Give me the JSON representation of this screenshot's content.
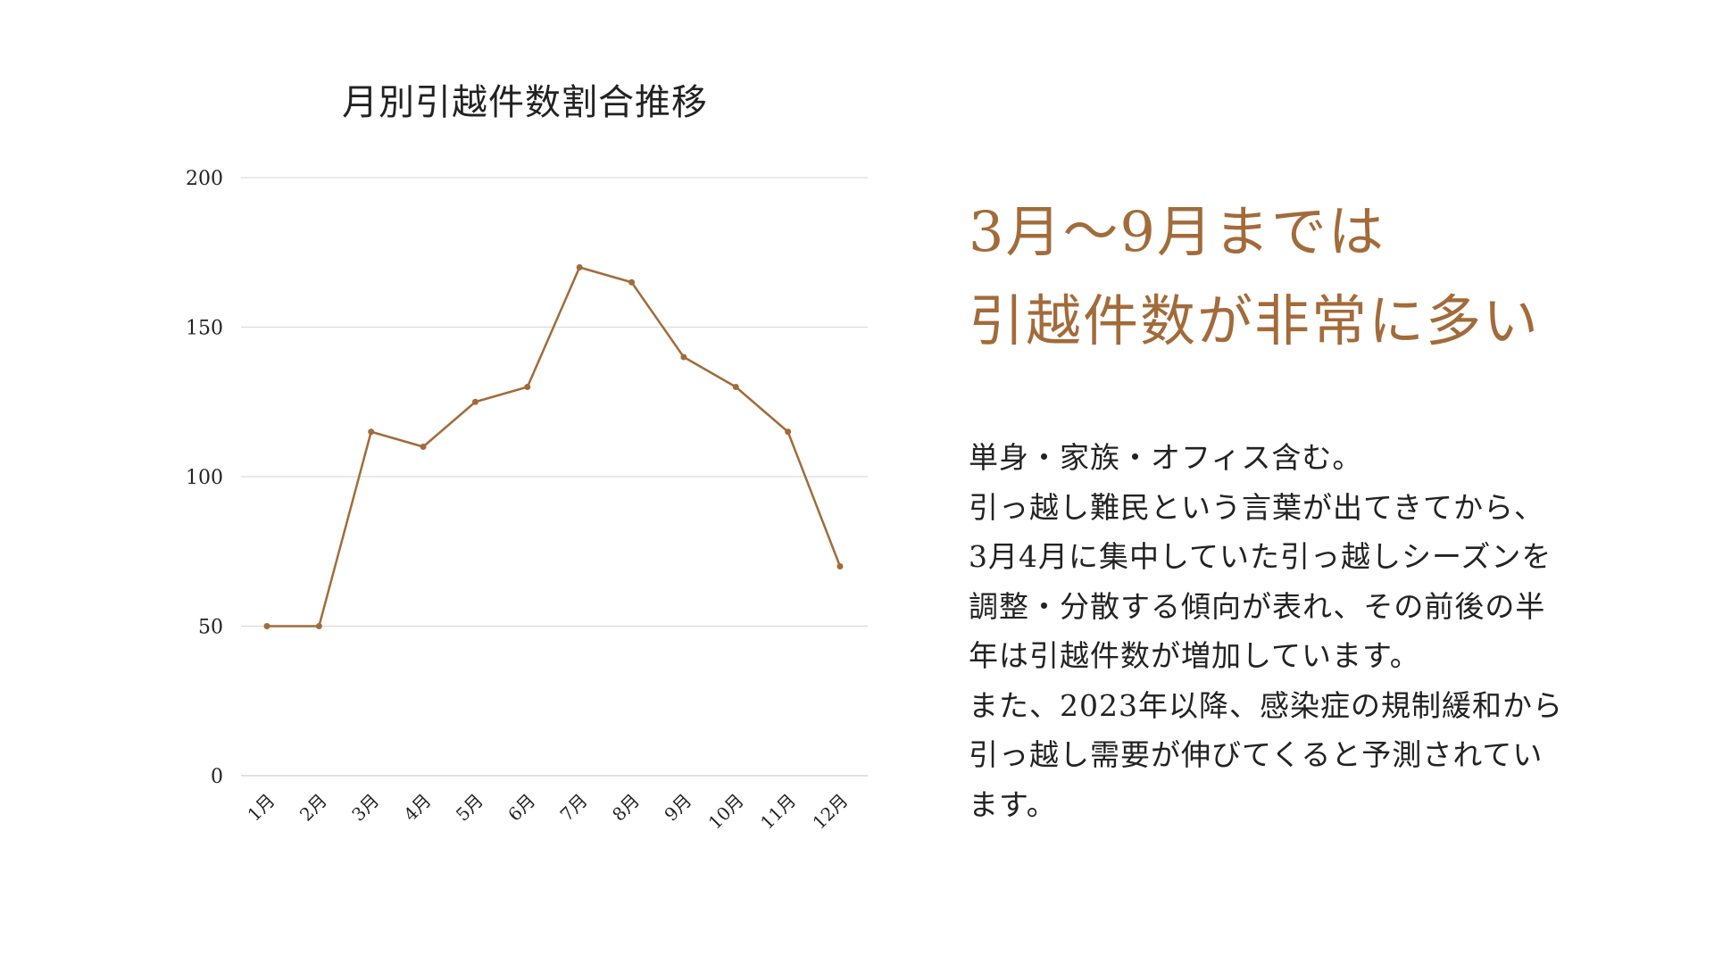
{
  "colors": {
    "accent": "#a26b3a",
    "grid": "#dcdcdc",
    "text": "#222222"
  },
  "chart_data": {
    "type": "line",
    "title": "月別引越件数割合推移",
    "categories": [
      "1月",
      "2月",
      "3月",
      "4月",
      "5月",
      "6月",
      "7月",
      "8月",
      "9月",
      "10月",
      "11月",
      "12月"
    ],
    "series": [
      {
        "values": [
          50,
          50,
          115,
          110,
          125,
          130,
          170,
          165,
          140,
          130,
          115,
          70
        ]
      }
    ],
    "ylim": [
      0,
      200
    ],
    "yticks": [
      0,
      50,
      100,
      150,
      200
    ],
    "grid": true,
    "xlabel": "",
    "ylabel": ""
  },
  "headline": {
    "line1": "3月～9月までは",
    "line2": "引越件数が非常に多い"
  },
  "body": {
    "lines": [
      "単身・家族・オフィス含む。",
      "引っ越し難民という言葉が出てきてから、",
      "3月4月に集中していた引っ越しシーズンを",
      "調整・分散する傾向が表れ、その前後の半",
      "年は引越件数が増加しています。",
      "また、2023年以降、感染症の規制緩和から",
      "引っ越し需要が伸びてくると予測されてい",
      "ます。"
    ]
  }
}
